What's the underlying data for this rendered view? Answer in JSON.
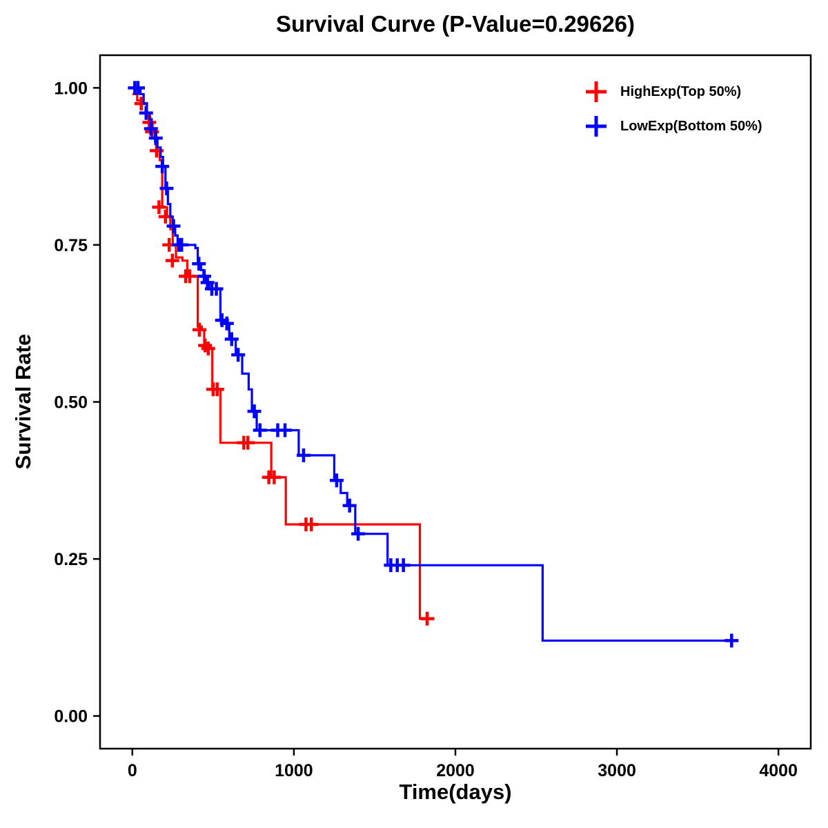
{
  "chart_data": {
    "type": "line",
    "chart_kind": "kaplan-meier-step-survival",
    "title": "Survival Curve (P-Value=0.29626)",
    "xlabel": "Time(days)",
    "ylabel": "Survival Rate",
    "grid": false,
    "legend_position": "top-right",
    "xlim": [
      -200,
      4200
    ],
    "ylim": [
      -0.052,
      1.052
    ],
    "xticks": [
      {
        "v": 0,
        "label": "0"
      },
      {
        "v": 1000,
        "label": "1000"
      },
      {
        "v": 2000,
        "label": "2000"
      },
      {
        "v": 3000,
        "label": "3000"
      },
      {
        "v": 4000,
        "label": "4000"
      }
    ],
    "yticks": [
      {
        "v": 0.0,
        "label": "0.00"
      },
      {
        "v": 0.25,
        "label": "0.25"
      },
      {
        "v": 0.5,
        "label": "0.50"
      },
      {
        "v": 0.75,
        "label": "0.75"
      },
      {
        "v": 1.0,
        "label": "1.00"
      }
    ],
    "series": [
      {
        "name": "HighExp(Top 50%)",
        "color": "#FF0000",
        "steps": [
          [
            0,
            0.99
          ],
          [
            30,
            0.98
          ],
          [
            60,
            0.975
          ],
          [
            90,
            0.955
          ],
          [
            110,
            0.945
          ],
          [
            125,
            0.93
          ],
          [
            140,
            0.915
          ],
          [
            155,
            0.9
          ],
          [
            170,
            0.885
          ],
          [
            185,
            0.81
          ],
          [
            215,
            0.795
          ],
          [
            235,
            0.775
          ],
          [
            250,
            0.75
          ],
          [
            270,
            0.73
          ],
          [
            310,
            0.725
          ],
          [
            340,
            0.7
          ],
          [
            405,
            0.62
          ],
          [
            430,
            0.615
          ],
          [
            445,
            0.59
          ],
          [
            465,
            0.585
          ],
          [
            495,
            0.52
          ],
          [
            545,
            0.435
          ],
          [
            860,
            0.38
          ],
          [
            950,
            0.305
          ],
          [
            1780,
            0.155
          ],
          [
            1870,
            0.155
          ]
        ],
        "censors": [
          [
            55,
            0.975
          ],
          [
            105,
            0.945
          ],
          [
            122,
            0.93
          ],
          [
            150,
            0.9
          ],
          [
            165,
            0.81
          ],
          [
            205,
            0.795
          ],
          [
            228,
            0.75
          ],
          [
            248,
            0.725
          ],
          [
            330,
            0.7
          ],
          [
            355,
            0.7
          ],
          [
            415,
            0.615
          ],
          [
            450,
            0.59
          ],
          [
            470,
            0.585
          ],
          [
            500,
            0.52
          ],
          [
            525,
            0.52
          ],
          [
            690,
            0.435
          ],
          [
            715,
            0.435
          ],
          [
            845,
            0.38
          ],
          [
            878,
            0.38
          ],
          [
            1075,
            0.305
          ],
          [
            1108,
            0.305
          ],
          [
            1825,
            0.155
          ]
        ]
      },
      {
        "name": "LowExp(Bottom 50%)",
        "color": "#0000FF",
        "steps": [
          [
            0,
            1.0
          ],
          [
            50,
            0.99
          ],
          [
            70,
            0.975
          ],
          [
            90,
            0.96
          ],
          [
            105,
            0.95
          ],
          [
            120,
            0.935
          ],
          [
            140,
            0.92
          ],
          [
            155,
            0.905
          ],
          [
            175,
            0.89
          ],
          [
            190,
            0.875
          ],
          [
            205,
            0.84
          ],
          [
            220,
            0.815
          ],
          [
            235,
            0.795
          ],
          [
            250,
            0.78
          ],
          [
            265,
            0.765
          ],
          [
            280,
            0.75
          ],
          [
            390,
            0.745
          ],
          [
            405,
            0.72
          ],
          [
            425,
            0.71
          ],
          [
            440,
            0.7
          ],
          [
            455,
            0.69
          ],
          [
            475,
            0.68
          ],
          [
            545,
            0.63
          ],
          [
            575,
            0.625
          ],
          [
            600,
            0.6
          ],
          [
            640,
            0.575
          ],
          [
            680,
            0.545
          ],
          [
            720,
            0.52
          ],
          [
            740,
            0.485
          ],
          [
            770,
            0.455
          ],
          [
            1030,
            0.415
          ],
          [
            1250,
            0.375
          ],
          [
            1290,
            0.355
          ],
          [
            1330,
            0.335
          ],
          [
            1380,
            0.29
          ],
          [
            1580,
            0.24
          ],
          [
            2540,
            0.12
          ],
          [
            3720,
            0.12
          ]
        ],
        "censors": [
          [
            15,
            1.0
          ],
          [
            35,
            1.0
          ],
          [
            85,
            0.96
          ],
          [
            115,
            0.935
          ],
          [
            145,
            0.92
          ],
          [
            185,
            0.875
          ],
          [
            212,
            0.84
          ],
          [
            255,
            0.78
          ],
          [
            288,
            0.75
          ],
          [
            305,
            0.75
          ],
          [
            412,
            0.72
          ],
          [
            445,
            0.7
          ],
          [
            465,
            0.69
          ],
          [
            492,
            0.68
          ],
          [
            520,
            0.68
          ],
          [
            555,
            0.63
          ],
          [
            585,
            0.625
          ],
          [
            615,
            0.6
          ],
          [
            655,
            0.575
          ],
          [
            755,
            0.485
          ],
          [
            790,
            0.455
          ],
          [
            900,
            0.455
          ],
          [
            945,
            0.455
          ],
          [
            1060,
            0.415
          ],
          [
            1265,
            0.375
          ],
          [
            1345,
            0.335
          ],
          [
            1398,
            0.29
          ],
          [
            1600,
            0.24
          ],
          [
            1640,
            0.24
          ],
          [
            1678,
            0.24
          ],
          [
            3710,
            0.12
          ]
        ]
      }
    ]
  }
}
